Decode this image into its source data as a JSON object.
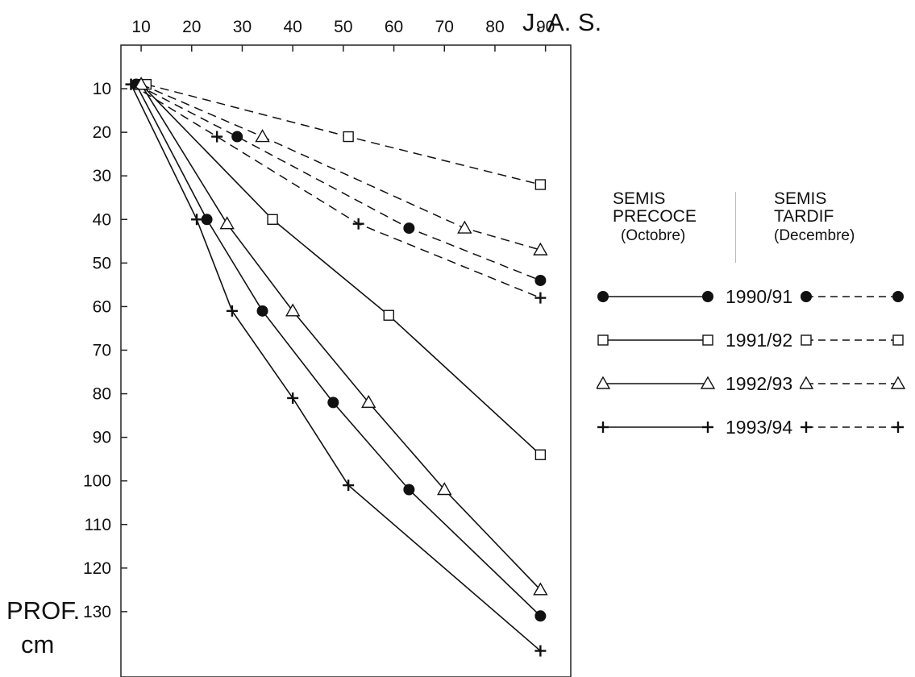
{
  "chart_data": {
    "type": "line",
    "x_unit_label": "J. A. S.",
    "y_label_line1": "PROF.",
    "y_label_line2": "cm",
    "x_ticks": [
      10,
      20,
      30,
      40,
      50,
      60,
      70,
      80,
      90
    ],
    "y_ticks": [
      10,
      20,
      30,
      40,
      50,
      60,
      70,
      80,
      90,
      100,
      110,
      120,
      130
    ],
    "xlim": [
      6,
      95
    ],
    "ylim": [
      0,
      145
    ],
    "y_inverted": true,
    "x_axis_position": "top",
    "legend": {
      "col1_line1": "SEMIS",
      "col1_line2": "PRECOCE",
      "col1_line3": "(Octobre)",
      "col2_line1": "SEMIS",
      "col2_line2": "TARDIF",
      "col2_line3": "(Decembre)",
      "years": [
        "1990/91",
        "1991/92",
        "1992/93",
        "1993/94"
      ]
    },
    "series": [
      {
        "year": "1990/91",
        "sowing": "precoce",
        "style": "solid",
        "marker": "filled-circle",
        "x": [
          9,
          23,
          34,
          48,
          63,
          89
        ],
        "y": [
          9,
          40,
          61,
          82,
          102,
          131
        ]
      },
      {
        "year": "1991/92",
        "sowing": "precoce",
        "style": "solid",
        "marker": "open-square",
        "x": [
          10,
          36,
          59,
          89
        ],
        "y": [
          9,
          40,
          62,
          94
        ]
      },
      {
        "year": "1992/93",
        "sowing": "precoce",
        "style": "solid",
        "marker": "open-triangle",
        "x": [
          10,
          27,
          40,
          55,
          70,
          89
        ],
        "y": [
          9,
          41,
          61,
          82,
          102,
          125
        ]
      },
      {
        "year": "1993/94",
        "sowing": "precoce",
        "style": "solid",
        "marker": "plus",
        "x": [
          8,
          21,
          28,
          40,
          51,
          89
        ],
        "y": [
          9,
          40,
          61,
          81,
          101,
          139
        ]
      },
      {
        "year": "1990/91",
        "sowing": "tardif",
        "style": "dashed",
        "marker": "filled-circle",
        "x": [
          9,
          29,
          63,
          89
        ],
        "y": [
          9,
          21,
          42,
          54
        ]
      },
      {
        "year": "1991/92",
        "sowing": "tardif",
        "style": "dashed",
        "marker": "open-square",
        "x": [
          11,
          51,
          89
        ],
        "y": [
          9,
          21,
          32
        ]
      },
      {
        "year": "1992/93",
        "sowing": "tardif",
        "style": "dashed",
        "marker": "open-triangle",
        "x": [
          10,
          34,
          74,
          89
        ],
        "y": [
          9,
          21,
          42,
          47
        ]
      },
      {
        "year": "1993/94",
        "sowing": "tardif",
        "style": "dashed",
        "marker": "plus",
        "x": [
          8,
          25,
          53,
          89
        ],
        "y": [
          9,
          21,
          41,
          58
        ]
      }
    ]
  }
}
